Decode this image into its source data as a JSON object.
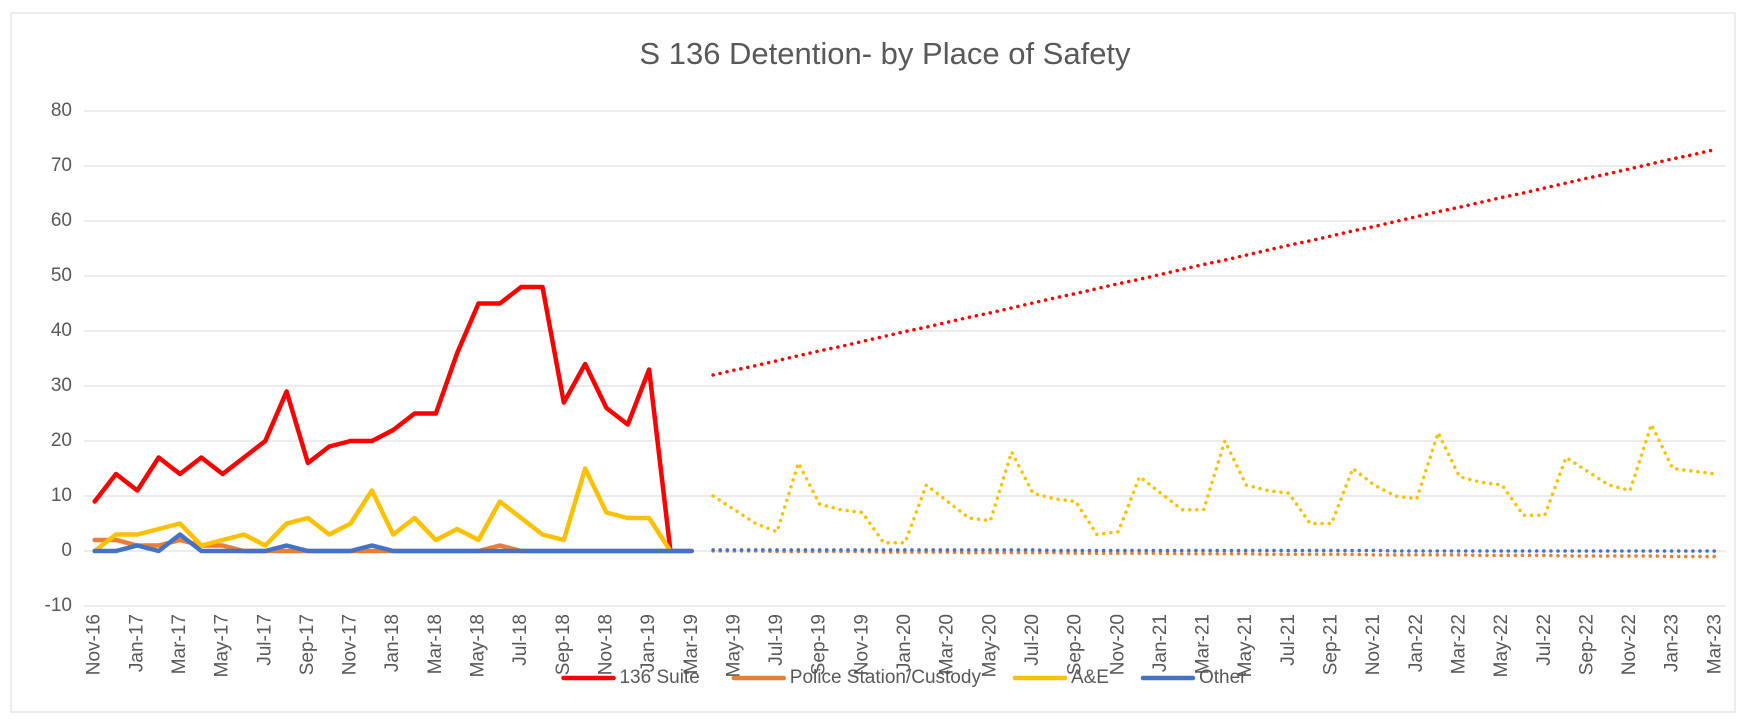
{
  "chart_data": {
    "type": "line",
    "title": "S 136 Detention- by Place of Safety",
    "categories": [
      "Nov-16",
      null,
      "Jan-17",
      null,
      "Mar-17",
      null,
      "May-17",
      null,
      "Jul-17",
      null,
      "Sep-17",
      null,
      "Nov-17",
      null,
      "Jan-18",
      null,
      "Mar-18",
      null,
      "May-18",
      null,
      "Jul-18",
      null,
      "Sep-18",
      null,
      "Nov-18",
      null,
      "Jan-19",
      null,
      "Mar-19",
      null,
      "May-19",
      null,
      "Jul-19",
      null,
      "Sep-19",
      null,
      "Nov-19",
      null,
      "Jan-20",
      null,
      "Mar-20",
      null,
      "May-20",
      null,
      "Jul-20",
      null,
      "Sep-20",
      null,
      "Nov-20",
      null,
      "Jan-21",
      null,
      "Mar-21",
      null,
      "May-21",
      null,
      "Jul-21",
      null,
      "Sep-21",
      null,
      "Nov-21",
      null,
      "Jan-22",
      null,
      "Mar-22",
      null,
      "May-22",
      null,
      "Jul-22",
      null,
      "Sep-22",
      null,
      "Nov-22",
      null,
      "Jan-23",
      null,
      "Mar-23"
    ],
    "series": [
      {
        "name": "136 Suite",
        "color": "#ff0000",
        "values": [
          9,
          14,
          11,
          17,
          14,
          17,
          14,
          17,
          20,
          29,
          16,
          19,
          20,
          20,
          22,
          25,
          25,
          36,
          45,
          45,
          48,
          48,
          27,
          34,
          26,
          23,
          33,
          0,
          null,
          null,
          null,
          null,
          null,
          null,
          null,
          null,
          null,
          null,
          null,
          null,
          null,
          null,
          null,
          null,
          null,
          null,
          null,
          null,
          null,
          null,
          null,
          null,
          null,
          null,
          null,
          null,
          null,
          null,
          null,
          null,
          null,
          null,
          null,
          null,
          null,
          null,
          null,
          null,
          null,
          null,
          null,
          null,
          null,
          null,
          null,
          null,
          null
        ],
        "forecast": [
          null,
          null,
          null,
          null,
          null,
          null,
          null,
          null,
          null,
          null,
          null,
          null,
          null,
          null,
          null,
          null,
          null,
          null,
          null,
          null,
          null,
          null,
          null,
          null,
          null,
          null,
          null,
          null,
          null,
          32.0,
          32.9,
          33.7,
          34.6,
          35.5,
          36.4,
          37.2,
          38.1,
          39.0,
          39.9,
          40.7,
          41.6,
          42.5,
          43.3,
          44.2,
          45.1,
          46.0,
          46.8,
          47.7,
          48.6,
          49.4,
          50.3,
          51.2,
          52.1,
          52.9,
          53.8,
          54.7,
          55.6,
          56.4,
          57.3,
          58.2,
          59.0,
          59.9,
          60.8,
          61.7,
          62.5,
          63.4,
          64.3,
          65.1,
          66.0,
          66.9,
          67.8,
          68.6,
          69.5,
          70.4,
          71.3,
          72.1,
          73.0
        ]
      },
      {
        "name": "Police Station/Custody",
        "color": "#ed7d31",
        "values": [
          2,
          2,
          1,
          1,
          2,
          1,
          1,
          0,
          0,
          0,
          0,
          0,
          0,
          0,
          0,
          0,
          0,
          0,
          0,
          1,
          0,
          0,
          0,
          0,
          0,
          0,
          0,
          0,
          0,
          null,
          null,
          null,
          null,
          null,
          null,
          null,
          null,
          null,
          null,
          null,
          null,
          null,
          null,
          null,
          null,
          null,
          null,
          null,
          null,
          null,
          null,
          null,
          null,
          null,
          null,
          null,
          null,
          null,
          null,
          null,
          null,
          null,
          null,
          null,
          null,
          null,
          null,
          null,
          null,
          null,
          null,
          null,
          null,
          null,
          null,
          null,
          null
        ],
        "forecast": [
          null,
          null,
          null,
          null,
          null,
          null,
          null,
          null,
          null,
          null,
          null,
          null,
          null,
          null,
          null,
          null,
          null,
          null,
          null,
          null,
          null,
          null,
          null,
          null,
          null,
          null,
          null,
          null,
          null,
          0,
          0,
          0,
          -0.1,
          -0.1,
          -0.1,
          -0.1,
          -0.1,
          -0.2,
          -0.2,
          -0.2,
          -0.2,
          -0.3,
          -0.3,
          -0.3,
          -0.3,
          -0.3,
          -0.4,
          -0.4,
          -0.4,
          -0.4,
          -0.4,
          -0.5,
          -0.5,
          -0.5,
          -0.5,
          -0.6,
          -0.6,
          -0.6,
          -0.6,
          -0.6,
          -0.7,
          -0.7,
          -0.7,
          -0.7,
          -0.7,
          -0.8,
          -0.8,
          -0.8,
          -0.8,
          -0.9,
          -0.9,
          -0.9,
          -0.9,
          -0.9,
          -1.0,
          -1.0,
          -1.0
        ]
      },
      {
        "name": "A&E",
        "color": "#ffc000",
        "values": [
          0,
          3,
          3,
          4,
          5,
          1,
          2,
          3,
          1,
          5,
          6,
          3,
          5,
          11,
          3,
          6,
          2,
          4,
          2,
          9,
          6,
          3,
          2,
          15,
          7,
          6,
          6,
          0,
          null,
          null,
          null,
          null,
          null,
          null,
          null,
          null,
          null,
          null,
          null,
          null,
          null,
          null,
          null,
          null,
          null,
          null,
          null,
          null,
          null,
          null,
          null,
          null,
          null,
          null,
          null,
          null,
          null,
          null,
          null,
          null,
          null,
          null,
          null,
          null,
          null,
          null,
          null,
          null,
          null,
          null,
          null,
          null,
          null,
          null,
          null,
          null,
          null
        ],
        "forecast": [
          null,
          null,
          null,
          null,
          null,
          null,
          null,
          null,
          null,
          null,
          null,
          null,
          null,
          null,
          null,
          null,
          null,
          null,
          null,
          null,
          null,
          null,
          null,
          null,
          null,
          null,
          null,
          null,
          null,
          10,
          7.5,
          5,
          3.5,
          16,
          8.5,
          7.5,
          7,
          1.5,
          1.5,
          12,
          9,
          6,
          5.5,
          18,
          10.5,
          9.5,
          9,
          3,
          3.5,
          13.5,
          10.5,
          7.5,
          7.5,
          20,
          12,
          11,
          10.5,
          5,
          5,
          15,
          12,
          10,
          9.5,
          21.5,
          13.5,
          12.5,
          12,
          6.5,
          6.5,
          17,
          14.5,
          12,
          11,
          23,
          15,
          14.5,
          14
        ]
      },
      {
        "name": "Other",
        "color": "#4472c4",
        "values": [
          0,
          0,
          1,
          0,
          3,
          0,
          0,
          0,
          0,
          1,
          0,
          0,
          0,
          1,
          0,
          0,
          0,
          0,
          0,
          0,
          0,
          0,
          0,
          0,
          0,
          0,
          0,
          0,
          0,
          null,
          null,
          null,
          null,
          null,
          null,
          null,
          null,
          null,
          null,
          null,
          null,
          null,
          null,
          null,
          null,
          null,
          null,
          null,
          null,
          null,
          null,
          null,
          null,
          null,
          null,
          null,
          null,
          null,
          null,
          null,
          null,
          null,
          null,
          null,
          null,
          null,
          null,
          null,
          null,
          null,
          null,
          null,
          null,
          null,
          null,
          null,
          null
        ],
        "forecast": [
          null,
          null,
          null,
          null,
          null,
          null,
          null,
          null,
          null,
          null,
          null,
          null,
          null,
          null,
          null,
          null,
          null,
          null,
          null,
          null,
          null,
          null,
          null,
          null,
          null,
          null,
          null,
          null,
          null,
          0.2,
          0.2,
          0.2,
          0.2,
          0.2,
          0.2,
          0.2,
          0.2,
          0.2,
          0.2,
          0.2,
          0.2,
          0.2,
          0.2,
          0.2,
          0.2,
          0.1,
          0.1,
          0.1,
          0.1,
          0.1,
          0.1,
          0.1,
          0.1,
          0.1,
          0.1,
          0.1,
          0.1,
          0.1,
          0.1,
          0.1,
          0.1,
          0,
          0,
          0,
          0,
          0,
          0,
          0,
          0,
          0,
          0,
          0,
          0,
          0,
          0,
          0,
          0
        ]
      }
    ],
    "ylim": [
      -10,
      80
    ],
    "yticks": [
      -10,
      0,
      10,
      20,
      30,
      40,
      50,
      60,
      70,
      80
    ],
    "grid": true,
    "legend": "bottom"
  }
}
